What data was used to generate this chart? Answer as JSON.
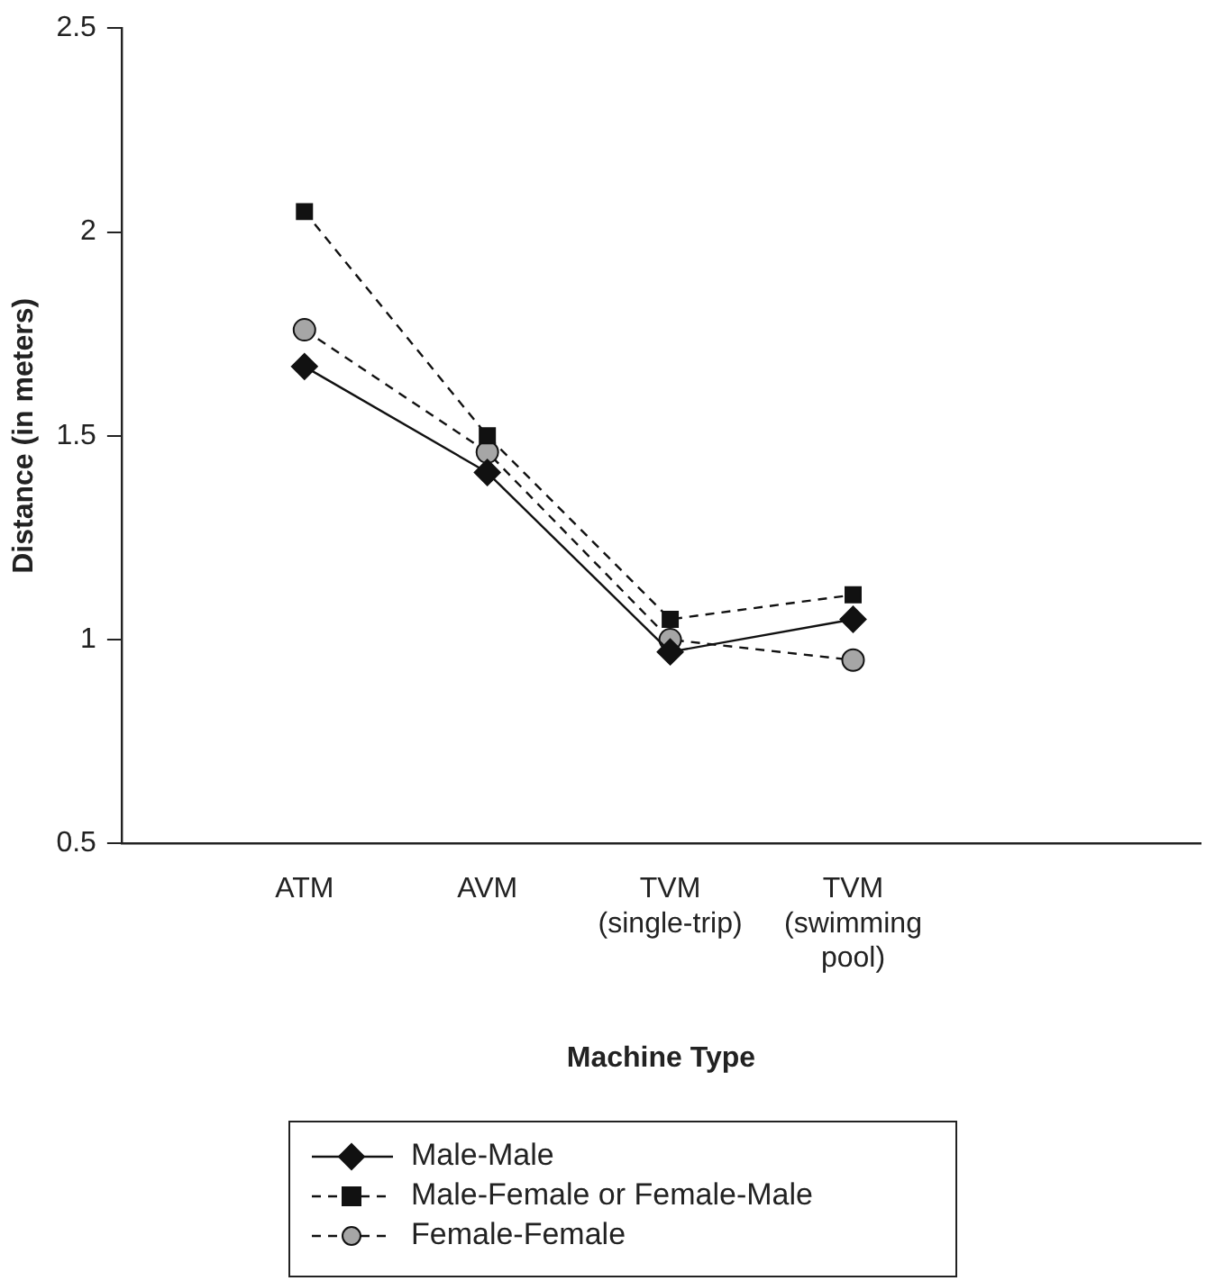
{
  "chart_data": {
    "type": "line",
    "xlabel": "Machine Type",
    "ylabel": "Distance (in meters)",
    "categories": [
      "ATM",
      "AVM",
      "TVM\n(single-trip)",
      "TVM\n(swimming\npool)"
    ],
    "ylim": [
      0.5,
      2.5
    ],
    "yticks": [
      0.5,
      1,
      1.5,
      2,
      2.5
    ],
    "grid": false,
    "legend": "bottom",
    "series": [
      {
        "name": "Male-Male",
        "color": "#111111",
        "marker": "diamond",
        "line_style": "solid",
        "values": [
          1.67,
          1.41,
          0.97,
          1.05
        ]
      },
      {
        "name": "Male-Female or Female-Male",
        "color": "#111111",
        "marker": "square",
        "line_style": "dashed",
        "values": [
          2.05,
          1.5,
          1.05,
          1.11
        ]
      },
      {
        "name": "Female-Female",
        "color": "#a6a6a6",
        "marker": "circle",
        "line_style": "dashed",
        "values": [
          1.76,
          1.46,
          1.0,
          0.95
        ]
      }
    ]
  }
}
